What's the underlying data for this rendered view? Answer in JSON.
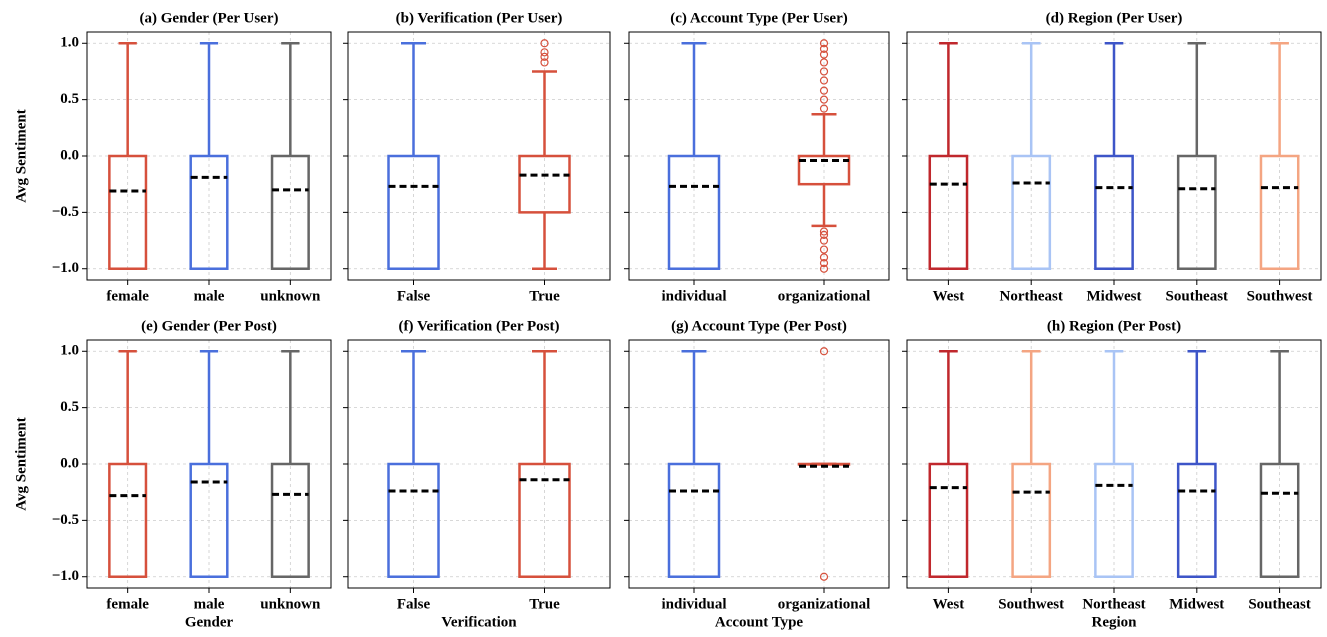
{
  "chart_data": [
    {
      "type": "box",
      "title": "(a) Gender (Per User)",
      "ylabel": "Avg Sentiment",
      "categories": [
        "female",
        "male",
        "unknown"
      ],
      "colors": [
        "#d6503c",
        "#4a6fdc",
        "#666666"
      ],
      "stats": [
        {
          "whislo": -1,
          "q1": -1,
          "mean": -0.31,
          "q3": 0,
          "whishi": 1
        },
        {
          "whislo": -1,
          "q1": -1,
          "mean": -0.19,
          "q3": 0,
          "whishi": 1
        },
        {
          "whislo": -1,
          "q1": -1,
          "mean": -0.3,
          "q3": 0,
          "whishi": 1
        }
      ],
      "ylim": [
        -1.1,
        1.1
      ],
      "yticks": [
        {
          "value": -1,
          "label": "−1.0"
        },
        {
          "value": -0.5,
          "label": "−0.5"
        },
        {
          "value": 0,
          "label": "0.0"
        },
        0.5,
        {
          "value": 1,
          "label": "1.0"
        }
      ],
      "grid": true
    },
    {
      "type": "box",
      "title": "(b) Verification (Per User)",
      "categories": [
        "False",
        "True"
      ],
      "colors": [
        "#4a6fdc",
        "#d6503c"
      ],
      "stats": [
        {
          "whislo": -1,
          "q1": -1,
          "mean": -0.27,
          "q3": 0,
          "whishi": 1
        },
        {
          "whislo": -1,
          "q1": -0.5,
          "mean": -0.17,
          "q3": 0,
          "whishi": 0.75,
          "fliers": [
            0.83,
            0.88,
            0.92,
            1
          ]
        }
      ],
      "ylim": [
        -1.1,
        1.1
      ],
      "yticks": [
        -1,
        -0.5,
        0,
        0.5,
        1
      ],
      "grid": true
    },
    {
      "type": "box",
      "title": "(c) Account Type (Per User)",
      "categories": [
        "individual",
        "organizational"
      ],
      "colors": [
        "#4a6fdc",
        "#d6503c"
      ],
      "stats": [
        {
          "whislo": -1,
          "q1": -1,
          "mean": -0.27,
          "q3": 0,
          "whishi": 1
        },
        {
          "whislo": -0.62,
          "q1": -0.25,
          "mean": -0.04,
          "q3": 0,
          "whishi": 0.37,
          "fliers": [
            -1,
            -0.95,
            -0.9,
            -0.83,
            -0.75,
            -0.7,
            -0.67,
            0.42,
            0.5,
            0.58,
            0.67,
            0.75,
            0.83,
            0.9,
            0.95,
            1
          ]
        }
      ],
      "ylim": [
        -1.1,
        1.1
      ],
      "yticks": [
        -1,
        -0.5,
        0,
        0.5,
        1
      ],
      "grid": true
    },
    {
      "type": "box",
      "title": "(d) Region (Per User)",
      "categories": [
        "West",
        "Northeast",
        "Midwest",
        "Southeast",
        "Southwest"
      ],
      "colors": [
        "#c0282d",
        "#a9c4f5",
        "#3d55c8",
        "#666666",
        "#f4a582"
      ],
      "stats": [
        {
          "whislo": -1,
          "q1": -1,
          "mean": -0.25,
          "q3": 0,
          "whishi": 1
        },
        {
          "whislo": -1,
          "q1": -1,
          "mean": -0.24,
          "q3": 0,
          "whishi": 1
        },
        {
          "whislo": -1,
          "q1": -1,
          "mean": -0.28,
          "q3": 0,
          "whishi": 1
        },
        {
          "whislo": -1,
          "q1": -1,
          "mean": -0.29,
          "q3": 0,
          "whishi": 1
        },
        {
          "whislo": -1,
          "q1": -1,
          "mean": -0.28,
          "q3": 0,
          "whishi": 1
        }
      ],
      "ylim": [
        -1.1,
        1.1
      ],
      "yticks": [
        -1,
        -0.5,
        0,
        0.5,
        1
      ],
      "grid": true
    },
    {
      "type": "box",
      "title": "(e) Gender (Per Post)",
      "ylabel": "Avg Sentiment",
      "xlabel": "Gender",
      "categories": [
        "female",
        "male",
        "unknown"
      ],
      "colors": [
        "#d6503c",
        "#4a6fdc",
        "#666666"
      ],
      "stats": [
        {
          "whislo": -1,
          "q1": -1,
          "mean": -0.28,
          "q3": 0,
          "whishi": 1
        },
        {
          "whislo": -1,
          "q1": -1,
          "mean": -0.16,
          "q3": 0,
          "whishi": 1
        },
        {
          "whislo": -1,
          "q1": -1,
          "mean": -0.27,
          "q3": 0,
          "whishi": 1
        }
      ],
      "ylim": [
        -1.1,
        1.1
      ],
      "yticks": [
        {
          "value": -1,
          "label": "−1.0"
        },
        {
          "value": -0.5,
          "label": "−0.5"
        },
        {
          "value": 0,
          "label": "0.0"
        },
        0.5,
        {
          "value": 1,
          "label": "1.0"
        }
      ],
      "grid": true
    },
    {
      "type": "box",
      "title": "(f) Verification (Per Post)",
      "xlabel": "Verification",
      "categories": [
        "False",
        "True"
      ],
      "colors": [
        "#4a6fdc",
        "#d6503c"
      ],
      "stats": [
        {
          "whislo": -1,
          "q1": -1,
          "mean": -0.24,
          "q3": 0,
          "whishi": 1
        },
        {
          "whislo": -1,
          "q1": -1,
          "mean": -0.14,
          "q3": 0,
          "whishi": 1
        }
      ],
      "ylim": [
        -1.1,
        1.1
      ],
      "yticks": [
        -1,
        -0.5,
        0,
        0.5,
        1
      ],
      "grid": true
    },
    {
      "type": "box",
      "title": "(g) Account Type (Per Post)",
      "xlabel": "Account Type",
      "categories": [
        "individual",
        "organizational"
      ],
      "colors": [
        "#4a6fdc",
        "#d6503c"
      ],
      "stats": [
        {
          "whislo": -1,
          "q1": -1,
          "mean": -0.24,
          "q3": 0,
          "whishi": 1
        },
        {
          "whislo": 0,
          "q1": 0,
          "mean": -0.02,
          "q3": 0,
          "whishi": 0,
          "fliers": [
            -1,
            1
          ]
        }
      ],
      "ylim": [
        -1.1,
        1.1
      ],
      "yticks": [
        -1,
        -0.5,
        0,
        0.5,
        1
      ],
      "grid": true
    },
    {
      "type": "box",
      "title": "(h) Region (Per Post)",
      "xlabel": "Region",
      "categories": [
        "West",
        "Southwest",
        "Northeast",
        "Midwest",
        "Southeast"
      ],
      "colors": [
        "#c0282d",
        "#f4a582",
        "#a9c4f5",
        "#3d55c8",
        "#666666"
      ],
      "stats": [
        {
          "whislo": -1,
          "q1": -1,
          "mean": -0.21,
          "q3": 0,
          "whishi": 1
        },
        {
          "whislo": -1,
          "q1": -1,
          "mean": -0.25,
          "q3": 0,
          "whishi": 1
        },
        {
          "whislo": -1,
          "q1": -1,
          "mean": -0.19,
          "q3": 0,
          "whishi": 1
        },
        {
          "whislo": -1,
          "q1": -1,
          "mean": -0.24,
          "q3": 0,
          "whishi": 1
        },
        {
          "whislo": -1,
          "q1": -1,
          "mean": -0.26,
          "q3": 0,
          "whishi": 1
        }
      ],
      "ylim": [
        -1.1,
        1.1
      ],
      "yticks": [
        -1,
        -0.5,
        0,
        0.5,
        1
      ],
      "grid": true
    }
  ]
}
